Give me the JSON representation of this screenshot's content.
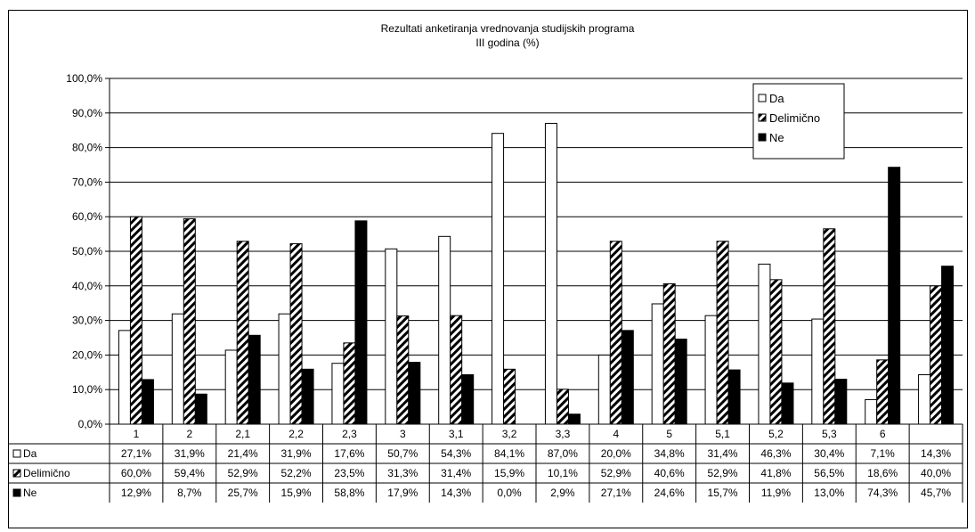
{
  "chart_data": {
    "type": "bar",
    "title": "Rezultati anketiranja vrednovanja studijskih programa",
    "subtitle": "III godina (%)",
    "xlabel": "",
    "ylabel": "",
    "ylim": [
      0,
      100
    ],
    "yticks": [
      "0,0%",
      "10,0%",
      "20,0%",
      "30,0%",
      "40,0%",
      "50,0%",
      "60,0%",
      "70,0%",
      "80,0%",
      "90,0%",
      "100,0%"
    ],
    "grid": true,
    "legend_position": "top-right",
    "categories": [
      "1",
      "2",
      "2,1",
      "2,2",
      "2,3",
      "3",
      "3,1",
      "3,2",
      "3,3",
      "4",
      "5",
      "5,1",
      "5,2",
      "5,3",
      "6",
      ""
    ],
    "series": [
      {
        "name": "Da",
        "pattern": "white",
        "values": [
          27.1,
          31.9,
          21.4,
          31.9,
          17.6,
          50.7,
          54.3,
          84.1,
          87.0,
          20.0,
          34.8,
          31.4,
          46.3,
          30.4,
          7.1,
          14.3
        ],
        "labels": [
          "27,1%",
          "31,9%",
          "21,4%",
          "31,9%",
          "17,6%",
          "50,7%",
          "54,3%",
          "84,1%",
          "87,0%",
          "20,0%",
          "34,8%",
          "31,4%",
          "46,3%",
          "30,4%",
          "7,1%",
          "14,3%"
        ]
      },
      {
        "name": "Delimično",
        "pattern": "diagonal-hatch",
        "values": [
          60.0,
          59.4,
          52.9,
          52.2,
          23.5,
          31.3,
          31.4,
          15.9,
          10.1,
          52.9,
          40.6,
          52.9,
          41.8,
          56.5,
          18.6,
          40.0
        ],
        "labels": [
          "60,0%",
          "59,4%",
          "52,9%",
          "52,2%",
          "23,5%",
          "31,3%",
          "31,4%",
          "15,9%",
          "10,1%",
          "52,9%",
          "40,6%",
          "52,9%",
          "41,8%",
          "56,5%",
          "18,6%",
          "40,0%"
        ]
      },
      {
        "name": "Ne",
        "pattern": "black",
        "values": [
          12.9,
          8.7,
          25.7,
          15.9,
          58.8,
          17.9,
          14.3,
          0.0,
          2.9,
          27.1,
          24.6,
          15.7,
          11.9,
          13.0,
          74.3,
          45.7
        ],
        "labels": [
          "12,9%",
          "8,7%",
          "25,7%",
          "15,9%",
          "58,8%",
          "17,9%",
          "14,3%",
          "0,0%",
          "2,9%",
          "27,1%",
          "24,6%",
          "15,7%",
          "11,9%",
          "13,0%",
          "74,3%",
          "45,7%"
        ]
      }
    ],
    "colors": {
      "da": "#ffffff",
      "delimicno_hatch": "#000000",
      "ne": "#000000",
      "grid": "#000000"
    }
  }
}
